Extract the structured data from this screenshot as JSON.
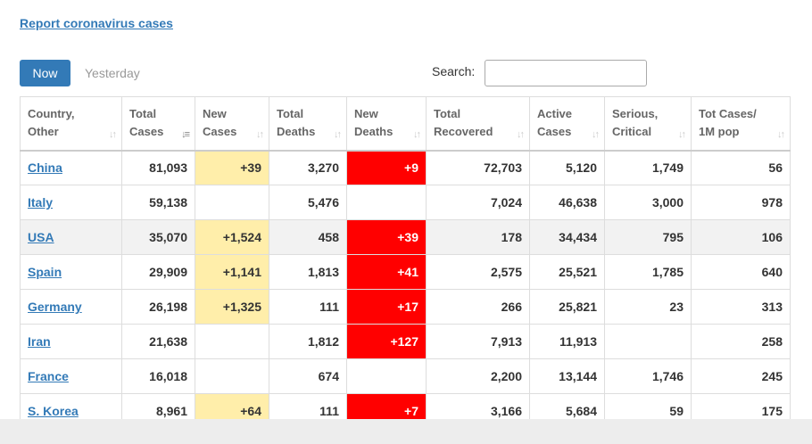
{
  "report_link": "Report coronavirus cases",
  "tabs": [
    {
      "label": "Now",
      "active": true
    },
    {
      "label": "Yesterday",
      "active": false
    }
  ],
  "search": {
    "label": "Search:",
    "value": "",
    "placeholder": ""
  },
  "columns": [
    {
      "label": "Country, Other"
    },
    {
      "label": "Total Cases"
    },
    {
      "label": "New Cases"
    },
    {
      "label": "Total Deaths"
    },
    {
      "label": "New Deaths"
    },
    {
      "label": "Total Recovered"
    },
    {
      "label": "Active Cases"
    },
    {
      "label": "Serious, Critical"
    },
    {
      "label": "Tot Cases/ 1M pop"
    }
  ],
  "rows": [
    {
      "country": "China",
      "total_cases": "81,093",
      "new_cases": "+39",
      "total_deaths": "3,270",
      "new_deaths": "+9",
      "total_recovered": "72,703",
      "active_cases": "5,120",
      "serious": "1,749",
      "per_million": "56"
    },
    {
      "country": "Italy",
      "total_cases": "59,138",
      "new_cases": "",
      "total_deaths": "5,476",
      "new_deaths": "",
      "total_recovered": "7,024",
      "active_cases": "46,638",
      "serious": "3,000",
      "per_million": "978"
    },
    {
      "country": "USA",
      "total_cases": "35,070",
      "new_cases": "+1,524",
      "total_deaths": "458",
      "new_deaths": "+39",
      "total_recovered": "178",
      "active_cases": "34,434",
      "serious": "795",
      "per_million": "106"
    },
    {
      "country": "Spain",
      "total_cases": "29,909",
      "new_cases": "+1,141",
      "total_deaths": "1,813",
      "new_deaths": "+41",
      "total_recovered": "2,575",
      "active_cases": "25,521",
      "serious": "1,785",
      "per_million": "640"
    },
    {
      "country": "Germany",
      "total_cases": "26,198",
      "new_cases": "+1,325",
      "total_deaths": "111",
      "new_deaths": "+17",
      "total_recovered": "266",
      "active_cases": "25,821",
      "serious": "23",
      "per_million": "313"
    },
    {
      "country": "Iran",
      "total_cases": "21,638",
      "new_cases": "",
      "total_deaths": "1,812",
      "new_deaths": "+127",
      "total_recovered": "7,913",
      "active_cases": "11,913",
      "serious": "",
      "per_million": "258"
    },
    {
      "country": "France",
      "total_cases": "16,018",
      "new_cases": "",
      "total_deaths": "674",
      "new_deaths": "",
      "total_recovered": "2,200",
      "active_cases": "13,144",
      "serious": "1,746",
      "per_million": "245"
    },
    {
      "country": "S. Korea",
      "total_cases": "8,961",
      "new_cases": "+64",
      "total_deaths": "111",
      "new_deaths": "+7",
      "total_recovered": "3,166",
      "active_cases": "5,684",
      "serious": "59",
      "per_million": "175"
    }
  ],
  "colors": {
    "link": "#337ab7",
    "new_cases_highlight": "#ffeeaa",
    "new_deaths_highlight": "#ff0000",
    "active_tab": "#337ab7"
  },
  "icons": {
    "sort": "sort-both-icon",
    "sort_active": "sort-desc-icon"
  }
}
